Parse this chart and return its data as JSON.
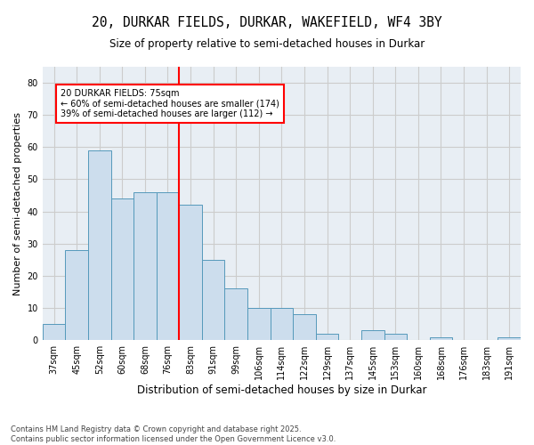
{
  "title_line1": "20, DURKAR FIELDS, DURKAR, WAKEFIELD, WF4 3BY",
  "title_line2": "Size of property relative to semi-detached houses in Durkar",
  "xlabel": "Distribution of semi-detached houses by size in Durkar",
  "ylabel": "Number of semi-detached properties",
  "bin_labels": [
    "37sqm",
    "45sqm",
    "52sqm",
    "60sqm",
    "68sqm",
    "76sqm",
    "83sqm",
    "91sqm",
    "99sqm",
    "106sqm",
    "114sqm",
    "122sqm",
    "129sqm",
    "137sqm",
    "145sqm",
    "153sqm",
    "160sqm",
    "168sqm",
    "176sqm",
    "183sqm",
    "191sqm"
  ],
  "bar_values": [
    5,
    28,
    59,
    44,
    46,
    46,
    42,
    25,
    16,
    10,
    10,
    8,
    2,
    0,
    3,
    2,
    0,
    1,
    0,
    0,
    1
  ],
  "bar_color": "#ccdded",
  "bar_edge_color": "#5599bb",
  "vline_index": 5,
  "vline_color": "red",
  "annotation_title": "20 DURKAR FIELDS: 75sqm",
  "annotation_line1": "← 60% of semi-detached houses are smaller (174)",
  "annotation_line2": "39% of semi-detached houses are larger (112) →",
  "ylim": [
    0,
    85
  ],
  "yticks": [
    0,
    10,
    20,
    30,
    40,
    50,
    60,
    70,
    80
  ],
  "grid_color": "#cccccc",
  "bg_color": "#e8eef4",
  "footnote_line1": "Contains HM Land Registry data © Crown copyright and database right 2025.",
  "footnote_line2": "Contains public sector information licensed under the Open Government Licence v3.0."
}
